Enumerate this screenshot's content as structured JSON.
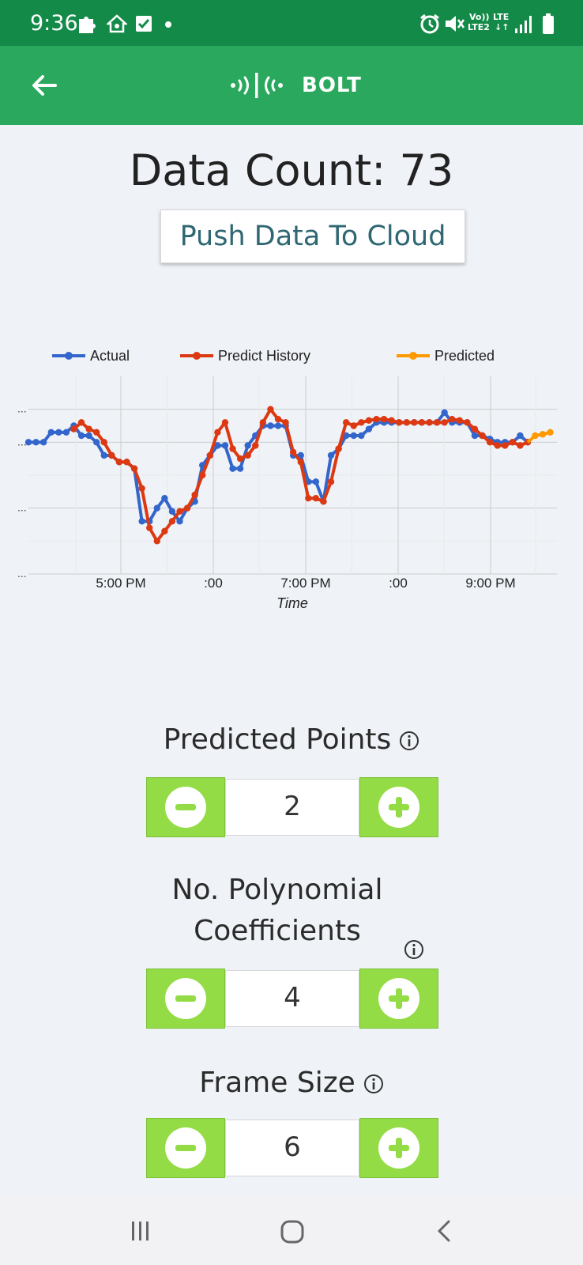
{
  "status_bar": {
    "time": "9:36",
    "volte_top": "Vo))",
    "volte_bottom": "LTE2",
    "net_top": "LTE",
    "net_bottom": "↓↑"
  },
  "app_bar": {
    "logo_text": "BOLT"
  },
  "main": {
    "data_count": "Data Count: 73",
    "push_button": "Push Data To Cloud"
  },
  "chart_data": {
    "type": "line",
    "xlabel": "Time",
    "x_ticks": [
      "5:00 PM",
      ":00",
      "7:00 PM",
      ":00",
      "9:00 PM"
    ],
    "y_ticks": [
      "...",
      "...",
      "...",
      "..."
    ],
    "legend": [
      "Actual",
      "Predict History",
      "Predicted"
    ],
    "legend_position": "top",
    "grid": true,
    "colors": {
      "Actual": "#3366cc",
      "Predict History": "#dc3912",
      "Predicted": "#ff9900"
    },
    "series": [
      {
        "name": "Actual",
        "values": [
          0.0,
          0.0,
          0.0,
          0.15,
          0.15,
          0.15,
          0.25,
          0.1,
          0.1,
          0.0,
          -0.2,
          -0.2,
          -0.3,
          -0.3,
          -0.4,
          -1.2,
          -1.2,
          -1.0,
          -0.85,
          -1.05,
          -1.2,
          -1.0,
          -0.9,
          -0.35,
          -0.2,
          -0.05,
          -0.05,
          -0.4,
          -0.4,
          -0.05,
          0.1,
          0.25,
          0.25,
          0.25,
          0.25,
          -0.2,
          -0.2,
          -0.6,
          -0.6,
          -0.9,
          -0.2,
          -0.1,
          0.1,
          0.1,
          0.1,
          0.2,
          0.3,
          0.3,
          0.3,
          0.3,
          0.3,
          0.3,
          0.3,
          0.3,
          0.3,
          0.45,
          0.3,
          0.3,
          0.3,
          0.1,
          0.1,
          0.05,
          0.0,
          0.0,
          0.0,
          0.1,
          0.0
        ]
      },
      {
        "name": "Predict History",
        "values": [
          null,
          null,
          null,
          null,
          null,
          null,
          0.2,
          0.3,
          0.2,
          0.15,
          0.0,
          -0.2,
          -0.3,
          -0.3,
          -0.4,
          -0.7,
          -1.3,
          -1.5,
          -1.35,
          -1.2,
          -1.05,
          -1.0,
          -0.8,
          -0.5,
          -0.2,
          0.15,
          0.3,
          -0.1,
          -0.25,
          -0.2,
          -0.05,
          0.3,
          0.5,
          0.35,
          0.3,
          -0.15,
          -0.3,
          -0.85,
          -0.85,
          -0.9,
          -0.6,
          -0.1,
          0.3,
          0.25,
          0.3,
          0.33,
          0.35,
          0.35,
          0.33,
          0.3,
          0.3,
          0.3,
          0.3,
          0.3,
          0.3,
          0.3,
          0.35,
          0.33,
          0.3,
          0.2,
          0.1,
          0.0,
          -0.05,
          -0.05,
          0.0,
          -0.05,
          0.0
        ]
      },
      {
        "name": "Predicted",
        "values_tail": [
          0.1,
          0.12,
          0.15
        ]
      }
    ]
  },
  "controls": [
    {
      "label": "Predicted Points",
      "value": "2"
    },
    {
      "label": "No. Polynomial Coefficients",
      "value": "4"
    },
    {
      "label": "Frame Size",
      "value": "6"
    }
  ]
}
